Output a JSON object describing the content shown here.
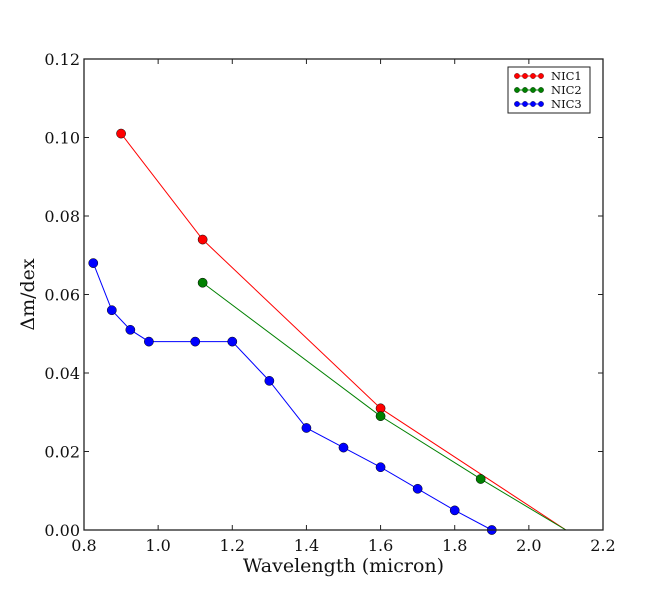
{
  "chart_data": {
    "type": "line",
    "title": "",
    "xlabel": "Wavelength (micron)",
    "ylabel": "Δm/dex",
    "xlim": [
      0.8,
      2.2
    ],
    "ylim": [
      0.0,
      0.12
    ],
    "grid": false,
    "legend_position": "top-right",
    "xticks": [
      "0.8",
      "1.0",
      "1.2",
      "1.4",
      "1.6",
      "1.8",
      "2.0",
      "2.2"
    ],
    "yticks": [
      "0.00",
      "0.02",
      "0.04",
      "0.06",
      "0.08",
      "0.10",
      "0.12"
    ],
    "xtick_values": [
      0.8,
      1.0,
      1.2,
      1.4,
      1.6,
      1.8,
      2.0,
      2.2
    ],
    "ytick_values": [
      0.0,
      0.02,
      0.04,
      0.06,
      0.08,
      0.1,
      0.12
    ],
    "series": [
      {
        "name": "NIC1",
        "color": "#ff0000",
        "x": [
          0.9,
          1.12,
          1.6,
          2.1
        ],
        "y": [
          0.101,
          0.074,
          0.031,
          0.0
        ],
        "markers": [
          true,
          true,
          true,
          false
        ]
      },
      {
        "name": "NIC2",
        "color": "#008000",
        "x": [
          1.12,
          1.6,
          1.87,
          2.1
        ],
        "y": [
          0.063,
          0.029,
          0.013,
          0.0
        ],
        "markers": [
          true,
          true,
          true,
          false
        ]
      },
      {
        "name": "NIC3",
        "color": "#0000ff",
        "x": [
          0.825,
          0.875,
          0.925,
          0.975,
          1.1,
          1.2,
          1.3,
          1.4,
          1.5,
          1.6,
          1.7,
          1.8,
          1.9
        ],
        "y": [
          0.068,
          0.056,
          0.051,
          0.048,
          0.048,
          0.048,
          0.038,
          0.026,
          0.021,
          0.016,
          0.0105,
          0.005,
          0.0
        ],
        "markers": [
          true,
          true,
          true,
          true,
          true,
          true,
          true,
          true,
          true,
          true,
          true,
          true,
          true
        ]
      }
    ]
  }
}
